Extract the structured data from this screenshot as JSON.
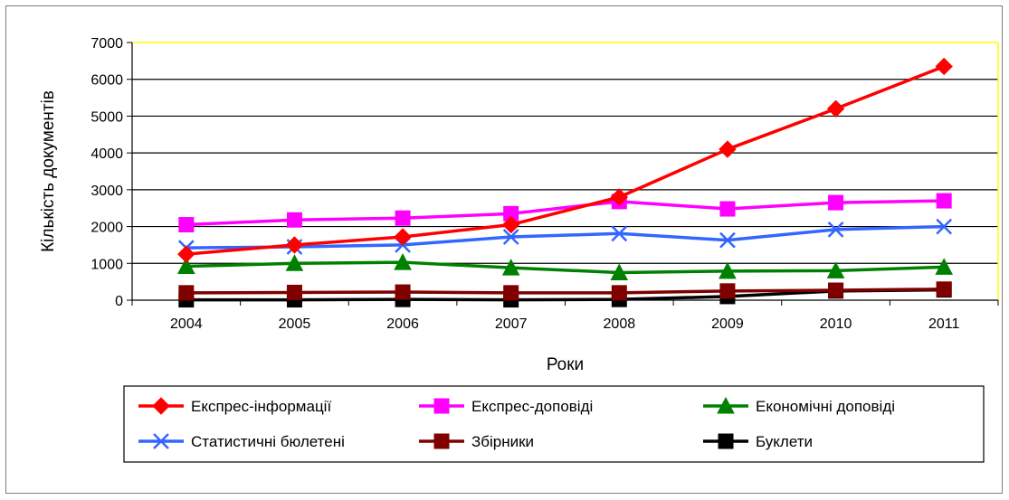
{
  "chart_data": {
    "type": "line",
    "title": "",
    "xlabel": "Роки",
    "ylabel": "Кількість документів",
    "ylim": [
      0,
      7000
    ],
    "yticks": [
      "0",
      "1000",
      "2000",
      "3000",
      "4000",
      "5000",
      "6000",
      "7000"
    ],
    "categories": [
      "2004",
      "2005",
      "2006",
      "2007",
      "2008",
      "2009",
      "2010",
      "2011"
    ],
    "grid": true,
    "legend_position": "bottom",
    "series": [
      {
        "name": "Експрес-інформації",
        "color": "#ff0000",
        "marker": "diamond",
        "values": [
          1250,
          1500,
          1720,
          2050,
          2800,
          4100,
          5200,
          6350
        ]
      },
      {
        "name": "Експрес-доповіді",
        "color": "#ff00ff",
        "marker": "square",
        "values": [
          2050,
          2180,
          2230,
          2350,
          2680,
          2480,
          2650,
          2700
        ]
      },
      {
        "name": "Економічні доповіді",
        "color": "#008000",
        "marker": "triangle",
        "values": [
          920,
          1000,
          1030,
          880,
          750,
          790,
          800,
          900
        ]
      },
      {
        "name": "Статистичні бюлетені",
        "color": "#3366ff",
        "marker": "x",
        "values": [
          1420,
          1450,
          1500,
          1720,
          1810,
          1630,
          1920,
          2000
        ]
      },
      {
        "name": "Збірники",
        "color": "#800000",
        "marker": "square",
        "values": [
          200,
          210,
          220,
          200,
          200,
          250,
          270,
          300
        ]
      },
      {
        "name": "Буклети",
        "color": "#000000",
        "marker": "square",
        "values": [
          10,
          10,
          20,
          10,
          20,
          100,
          250,
          280
        ]
      }
    ]
  }
}
